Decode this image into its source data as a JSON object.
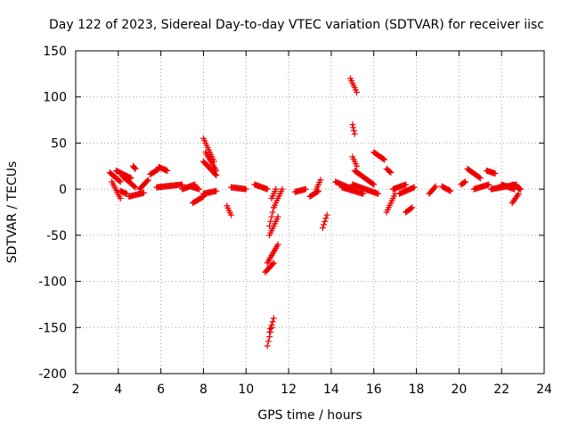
{
  "chart_data": {
    "type": "scatter",
    "title": "Day 122 of 2023, Sidereal Day-to-day VTEC variation (SDTVAR) for receiver iisc",
    "xlabel": "GPS time / hours",
    "ylabel": "SDTVAR / TECUs",
    "xlim": [
      2,
      24
    ],
    "ylim": [
      -200,
      150
    ],
    "xticks": [
      2,
      4,
      6,
      8,
      10,
      12,
      14,
      16,
      18,
      20,
      22,
      24
    ],
    "yticks": [
      -200,
      -150,
      -100,
      -50,
      0,
      50,
      100,
      150
    ],
    "grid": true,
    "marker": "+",
    "color": "#ee0000",
    "segments": [
      {
        "x0": 3.6,
        "x1": 4.1,
        "y0": 18,
        "y1": 8
      },
      {
        "x0": 3.7,
        "x1": 4.1,
        "y0": 8,
        "y1": -10
      },
      {
        "x0": 3.9,
        "x1": 4.6,
        "y0": 20,
        "y1": 12
      },
      {
        "x0": 4.2,
        "x1": 4.8,
        "y0": 14,
        "y1": 2
      },
      {
        "x0": 4.1,
        "x1": 4.4,
        "y0": -2,
        "y1": -5
      },
      {
        "x0": 4.5,
        "x1": 5.2,
        "y0": -8,
        "y1": -4
      },
      {
        "x0": 5.0,
        "x1": 5.4,
        "y0": 0,
        "y1": 10
      },
      {
        "x0": 4.7,
        "x1": 4.8,
        "y0": 25,
        "y1": 22
      },
      {
        "x0": 5.5,
        "x1": 5.9,
        "y0": 16,
        "y1": 22
      },
      {
        "x0": 5.9,
        "x1": 6.3,
        "y0": 24,
        "y1": 20
      },
      {
        "x0": 5.8,
        "x1": 7.0,
        "y0": 2,
        "y1": 5
      },
      {
        "x0": 7.0,
        "x1": 7.6,
        "y0": 0,
        "y1": 5
      },
      {
        "x0": 7.4,
        "x1": 7.8,
        "y0": 3,
        "y1": 0
      },
      {
        "x0": 7.5,
        "x1": 8.0,
        "y0": -15,
        "y1": -8
      },
      {
        "x0": 8.0,
        "x1": 8.6,
        "y0": -5,
        "y1": -2
      },
      {
        "x0": 8.0,
        "x1": 8.5,
        "y0": 55,
        "y1": 30
      },
      {
        "x0": 8.1,
        "x1": 8.6,
        "y0": 40,
        "y1": 20
      },
      {
        "x0": 8.0,
        "x1": 8.6,
        "y0": 30,
        "y1": 15
      },
      {
        "x0": 9.1,
        "x1": 9.3,
        "y0": -18,
        "y1": -28
      },
      {
        "x0": 9.3,
        "x1": 10.0,
        "y0": 2,
        "y1": 0
      },
      {
        "x0": 10.4,
        "x1": 11.0,
        "y0": 5,
        "y1": 0
      },
      {
        "x0": 10.9,
        "x1": 11.3,
        "y0": -90,
        "y1": -80
      },
      {
        "x0": 11.0,
        "x1": 11.5,
        "y0": -80,
        "y1": -60
      },
      {
        "x0": 11.1,
        "x1": 11.5,
        "y0": -50,
        "y1": -30
      },
      {
        "x0": 11.1,
        "x1": 11.3,
        "y0": -40,
        "y1": -20
      },
      {
        "x0": 11.2,
        "x1": 11.4,
        "y0": -10,
        "y1": 0
      },
      {
        "x0": 11.0,
        "x1": 11.2,
        "y0": -170,
        "y1": -150
      },
      {
        "x0": 11.1,
        "x1": 11.3,
        "y0": -155,
        "y1": -140
      },
      {
        "x0": 11.3,
        "x1": 11.7,
        "y0": -20,
        "y1": 0
      },
      {
        "x0": 12.3,
        "x1": 12.8,
        "y0": -3,
        "y1": 0
      },
      {
        "x0": 13.0,
        "x1": 13.4,
        "y0": -8,
        "y1": -2
      },
      {
        "x0": 13.6,
        "x1": 13.8,
        "y0": -42,
        "y1": -28
      },
      {
        "x0": 13.3,
        "x1": 13.5,
        "y0": 0,
        "y1": 10
      },
      {
        "x0": 14.2,
        "x1": 15.0,
        "y0": 8,
        "y1": 0
      },
      {
        "x0": 14.5,
        "x1": 15.5,
        "y0": 2,
        "y1": -5
      },
      {
        "x0": 15.0,
        "x1": 16.2,
        "y0": 5,
        "y1": -5
      },
      {
        "x0": 14.9,
        "x1": 15.2,
        "y0": 120,
        "y1": 105
      },
      {
        "x0": 15.0,
        "x1": 15.1,
        "y0": 70,
        "y1": 60
      },
      {
        "x0": 15.0,
        "x1": 15.2,
        "y0": 35,
        "y1": 25
      },
      {
        "x0": 15.1,
        "x1": 16.0,
        "y0": 20,
        "y1": 5
      },
      {
        "x0": 16.0,
        "x1": 16.5,
        "y0": 40,
        "y1": 32
      },
      {
        "x0": 16.6,
        "x1": 16.8,
        "y0": 22,
        "y1": 18
      },
      {
        "x0": 16.6,
        "x1": 17.0,
        "y0": -25,
        "y1": -5
      },
      {
        "x0": 16.9,
        "x1": 17.5,
        "y0": 0,
        "y1": 5
      },
      {
        "x0": 17.2,
        "x1": 17.9,
        "y0": -5,
        "y1": 2
      },
      {
        "x0": 17.5,
        "x1": 17.8,
        "y0": -25,
        "y1": -20
      },
      {
        "x0": 18.6,
        "x1": 18.9,
        "y0": -5,
        "y1": 3
      },
      {
        "x0": 19.2,
        "x1": 19.6,
        "y0": 3,
        "y1": -2
      },
      {
        "x0": 20.1,
        "x1": 20.3,
        "y0": 5,
        "y1": 8
      },
      {
        "x0": 20.4,
        "x1": 21.0,
        "y0": 22,
        "y1": 12
      },
      {
        "x0": 20.7,
        "x1": 21.4,
        "y0": 0,
        "y1": 5
      },
      {
        "x0": 21.3,
        "x1": 21.7,
        "y0": 20,
        "y1": 17
      },
      {
        "x0": 21.5,
        "x1": 22.7,
        "y0": 0,
        "y1": 5
      },
      {
        "x0": 22.0,
        "x1": 22.6,
        "y0": 5,
        "y1": 0
      },
      {
        "x0": 22.5,
        "x1": 22.8,
        "y0": -15,
        "y1": -5
      },
      {
        "x0": 22.5,
        "x1": 22.9,
        "y0": 5,
        "y1": 0
      }
    ]
  }
}
